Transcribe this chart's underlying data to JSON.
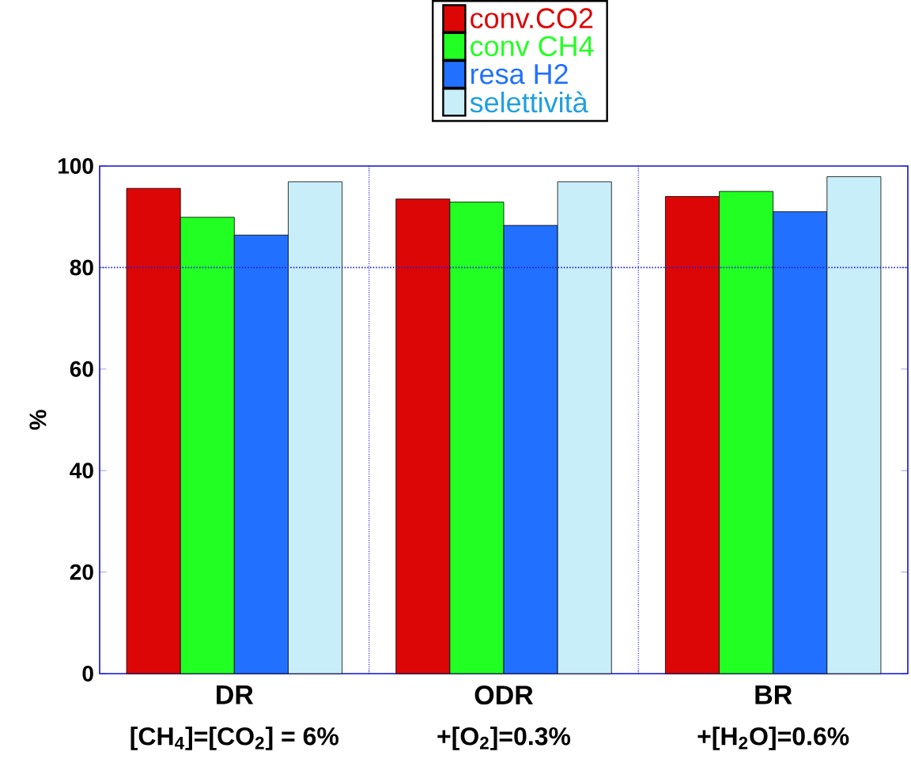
{
  "chart_data": {
    "type": "bar",
    "ylabel": "%",
    "categories": [
      "DR",
      "ODR",
      "BR"
    ],
    "series": [
      {
        "name": "conv.CO2",
        "color": "#dd0606",
        "values": [
          95.6,
          93.5,
          94.0
        ]
      },
      {
        "name": "conv CH4",
        "color": "#22ff22",
        "values": [
          89.9,
          92.9,
          95.0
        ]
      },
      {
        "name": "resa H2",
        "color": "#2270ff",
        "values": [
          86.4,
          88.3,
          91.0
        ]
      },
      {
        "name": "selettività",
        "color": "#c8eefa",
        "values": [
          96.9,
          96.9,
          97.9
        ]
      }
    ],
    "ylim": [
      0,
      100
    ],
    "yticks": [
      0,
      20,
      40,
      60,
      80,
      100
    ],
    "grid": "x",
    "legend": "top",
    "ref_lines": [
      {
        "axis": "y",
        "value": 80,
        "color": "#2222dd",
        "line_style": "dotted"
      }
    ],
    "annotations": [
      "[CH$_{4}$]=[CO$_{2}$] = 6%",
      "+[O$_{2}$]=0.3%",
      "+[H$_{2}$O]=0.6%"
    ]
  }
}
